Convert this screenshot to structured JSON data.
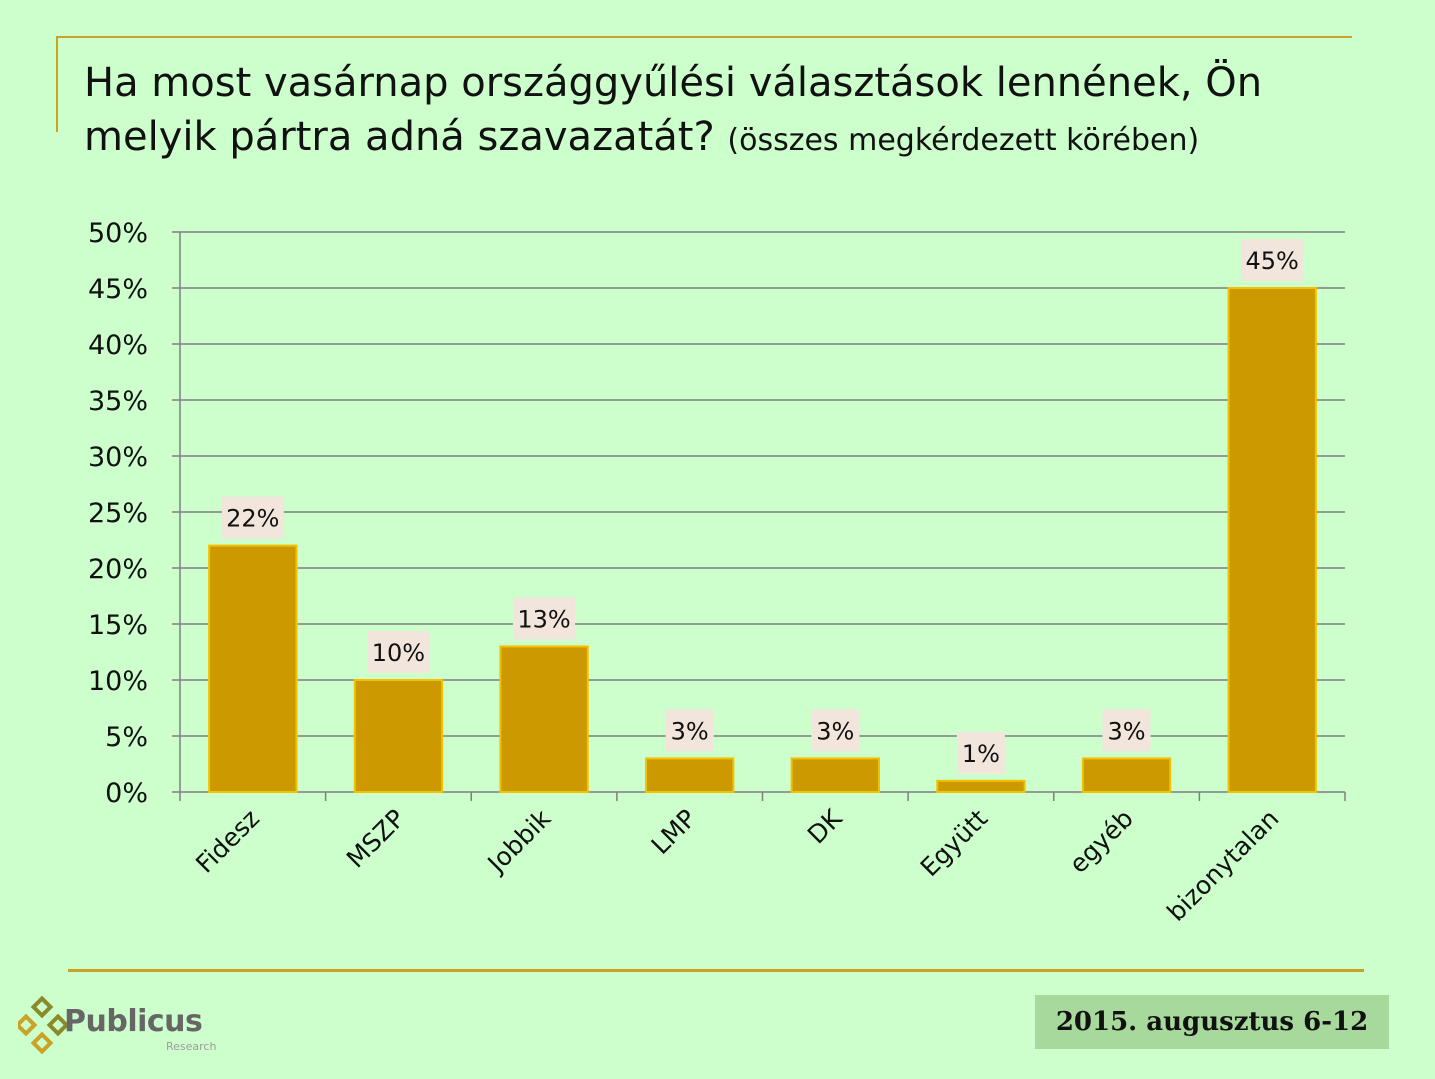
{
  "header": {
    "title_main": "Ha most vasárnap országgyűlési választások lennének, Ön melyik pártra adná szavazatát?",
    "title_sub": "(összes megkérdezett körében)"
  },
  "footer": {
    "logo_text": "Publicus",
    "logo_sub": "Research",
    "date": "2015. augusztus 6-12"
  },
  "colors": {
    "background": "#ccffcc",
    "bar_fill": "#cc9900",
    "bar_border": "#f2c200",
    "label_bg": "#f2e6dc",
    "accent_rule": "#c9a227"
  },
  "chart_data": {
    "type": "bar",
    "title": "Ha most vasárnap országgyűlési választások lennének, Ön melyik pártra adná szavazatát? (összes megkérdezett körében)",
    "xlabel": "",
    "ylabel": "",
    "categories": [
      "Fidesz",
      "MSZP",
      "Jobbik",
      "LMP",
      "DK",
      "Együtt",
      "egyéb",
      "bizonytalan"
    ],
    "values": [
      22,
      10,
      13,
      3,
      3,
      1,
      3,
      45
    ],
    "data_labels": [
      "22%",
      "10%",
      "13%",
      "3%",
      "3%",
      "1%",
      "3%",
      "45%"
    ],
    "ylim": [
      0,
      50
    ],
    "yticks": [
      0,
      5,
      10,
      15,
      20,
      25,
      30,
      35,
      40,
      45,
      50
    ],
    "ytick_labels": [
      "0%",
      "5%",
      "10%",
      "15%",
      "20%",
      "25%",
      "30%",
      "35%",
      "40%",
      "45%",
      "50%"
    ],
    "grid": true,
    "legend": "none"
  }
}
